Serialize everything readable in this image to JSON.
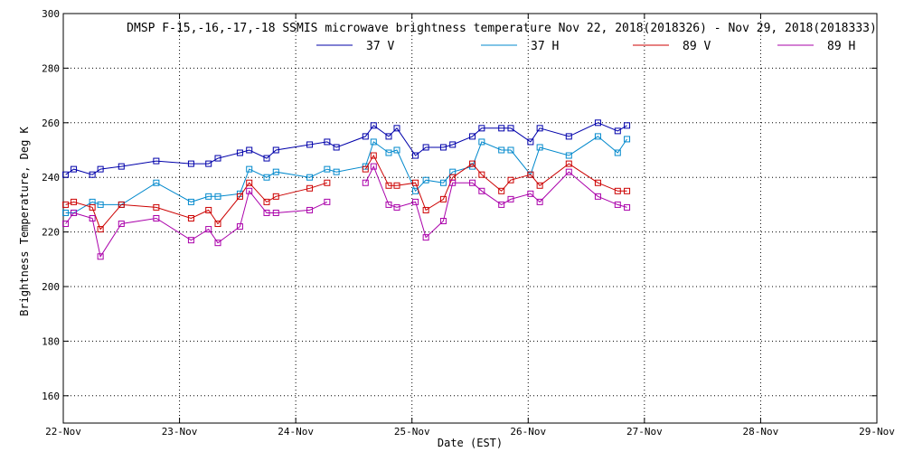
{
  "chart_data": {
    "type": "line",
    "title": "DMSP F-15,-16,-17,-18 SSMIS microwave brightness temperature Nov 22, 2018(2018326) - Nov 29, 2018(2018333)",
    "xlabel": "Date (EST)",
    "ylabel": "Brightness Temperature, Deg K",
    "ylim": [
      150,
      300
    ],
    "xlim": [
      0,
      7
    ],
    "yticks": [
      160,
      180,
      200,
      220,
      240,
      260,
      280,
      300
    ],
    "xticks": [
      {
        "x": 0,
        "label": "22-Nov"
      },
      {
        "x": 1,
        "label": "23-Nov"
      },
      {
        "x": 2,
        "label": "24-Nov"
      },
      {
        "x": 3,
        "label": "25-Nov"
      },
      {
        "x": 4,
        "label": "26-Nov"
      },
      {
        "x": 5,
        "label": "27-Nov"
      },
      {
        "x": 6,
        "label": "28-Nov"
      },
      {
        "x": 7,
        "label": "29-Nov"
      }
    ],
    "grid": true,
    "legend_position": "top-center",
    "series": [
      {
        "name": "37 V",
        "color": "#0000aa",
        "segments": [
          [
            [
              0.02,
              241
            ],
            [
              0.09,
              243
            ],
            [
              0.25,
              241
            ],
            [
              0.32,
              243
            ],
            [
              0.5,
              244
            ],
            [
              0.8,
              246
            ],
            [
              1.1,
              245
            ],
            [
              1.25,
              245
            ],
            [
              1.33,
              247
            ],
            [
              1.52,
              249
            ],
            [
              1.6,
              250
            ],
            [
              1.75,
              247
            ],
            [
              1.83,
              250
            ],
            [
              2.12,
              252
            ],
            [
              2.27,
              253
            ],
            [
              2.35,
              251
            ],
            [
              2.6,
              255
            ],
            [
              2.67,
              259
            ],
            [
              2.8,
              255
            ],
            [
              2.87,
              258
            ],
            [
              3.03,
              248
            ],
            [
              3.12,
              251
            ],
            [
              3.27,
              251
            ],
            [
              3.35,
              252
            ],
            [
              3.52,
              255
            ],
            [
              3.6,
              258
            ],
            [
              3.77,
              258
            ],
            [
              3.85,
              258
            ],
            [
              4.02,
              253
            ],
            [
              4.1,
              258
            ],
            [
              4.35,
              255
            ],
            [
              4.6,
              260
            ],
            [
              4.77,
              257
            ],
            [
              4.85,
              259
            ]
          ]
        ]
      },
      {
        "name": "37 H",
        "color": "#0088cc",
        "segments": [
          [
            [
              0.02,
              227
            ],
            [
              0.09,
              227
            ],
            [
              0.25,
              231
            ],
            [
              0.32,
              230
            ],
            [
              0.5,
              230
            ],
            [
              0.8,
              238
            ],
            [
              1.1,
              231
            ],
            [
              1.25,
              233
            ],
            [
              1.33,
              233
            ],
            [
              1.52,
              234
            ],
            [
              1.6,
              243
            ],
            [
              1.75,
              240
            ],
            [
              1.83,
              242
            ],
            [
              2.12,
              240
            ],
            [
              2.27,
              243
            ],
            [
              2.35,
              242
            ],
            [
              2.6,
              244
            ],
            [
              2.67,
              253
            ],
            [
              2.8,
              249
            ],
            [
              2.87,
              250
            ],
            [
              3.03,
              235
            ],
            [
              3.12,
              239
            ],
            [
              3.27,
              238
            ],
            [
              3.35,
              242
            ],
            [
              3.52,
              244
            ],
            [
              3.6,
              253
            ],
            [
              3.77,
              250
            ],
            [
              3.85,
              250
            ],
            [
              4.02,
              241
            ],
            [
              4.1,
              251
            ],
            [
              4.35,
              248
            ],
            [
              4.6,
              255
            ],
            [
              4.77,
              249
            ],
            [
              4.85,
              254
            ]
          ]
        ]
      },
      {
        "name": "89 V",
        "color": "#cc0000",
        "segments": [
          [
            [
              0.02,
              230
            ],
            [
              0.09,
              231
            ],
            [
              0.25,
              229
            ],
            [
              0.32,
              221
            ],
            [
              0.5,
              230
            ],
            [
              0.8,
              229
            ],
            [
              1.1,
              225
            ],
            [
              1.25,
              228
            ],
            [
              1.33,
              223
            ],
            [
              1.52,
              233
            ],
            [
              1.6,
              238
            ],
            [
              1.75,
              231
            ],
            [
              1.83,
              233
            ],
            [
              2.12,
              236
            ],
            [
              2.27,
              238
            ]
          ],
          [
            [
              2.6,
              243
            ],
            [
              2.67,
              248
            ],
            [
              2.8,
              237
            ],
            [
              2.87,
              237
            ],
            [
              3.03,
              238
            ],
            [
              3.12,
              228
            ],
            [
              3.27,
              232
            ],
            [
              3.35,
              240
            ],
            [
              3.52,
              245
            ],
            [
              3.6,
              241
            ],
            [
              3.77,
              235
            ],
            [
              3.85,
              239
            ],
            [
              4.02,
              241
            ],
            [
              4.1,
              237
            ],
            [
              4.35,
              245
            ],
            [
              4.6,
              238
            ],
            [
              4.77,
              235
            ],
            [
              4.85,
              235
            ]
          ]
        ]
      },
      {
        "name": "89 H",
        "color": "#aa00aa",
        "segments": [
          [
            [
              0.02,
              223
            ],
            [
              0.09,
              227
            ],
            [
              0.25,
              225
            ],
            [
              0.32,
              211
            ],
            [
              0.5,
              223
            ],
            [
              0.8,
              225
            ],
            [
              1.1,
              217
            ],
            [
              1.25,
              221
            ],
            [
              1.33,
              216
            ],
            [
              1.52,
              222
            ],
            [
              1.6,
              235
            ],
            [
              1.75,
              227
            ],
            [
              1.83,
              227
            ],
            [
              2.12,
              228
            ],
            [
              2.27,
              231
            ]
          ],
          [
            [
              2.6,
              238
            ],
            [
              2.67,
              244
            ],
            [
              2.8,
              230
            ],
            [
              2.87,
              229
            ],
            [
              3.03,
              231
            ],
            [
              3.12,
              218
            ],
            [
              3.27,
              224
            ],
            [
              3.35,
              238
            ],
            [
              3.52,
              238
            ],
            [
              3.6,
              235
            ],
            [
              3.77,
              230
            ],
            [
              3.85,
              232
            ],
            [
              4.02,
              234
            ],
            [
              4.1,
              231
            ],
            [
              4.35,
              242
            ],
            [
              4.6,
              233
            ],
            [
              4.77,
              230
            ],
            [
              4.85,
              229
            ]
          ]
        ]
      }
    ]
  }
}
